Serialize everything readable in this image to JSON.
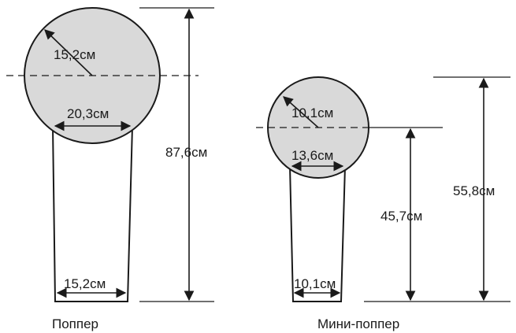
{
  "popper": {
    "caption": "Поппер",
    "radius_label": "15,2см",
    "neck_width_label": "20,3см",
    "base_width_label": "15,2см",
    "total_height_label": "87,6см"
  },
  "mini_popper": {
    "caption": "Мини-поппер",
    "radius_label": "10,1см",
    "neck_width_label": "13,6см",
    "base_width_label": "10,1см",
    "center_height_label": "45,7см",
    "total_height_label": "55,8см"
  },
  "colors": {
    "head_fill": "#d9d9d9",
    "stroke": "#1a1a1a"
  }
}
